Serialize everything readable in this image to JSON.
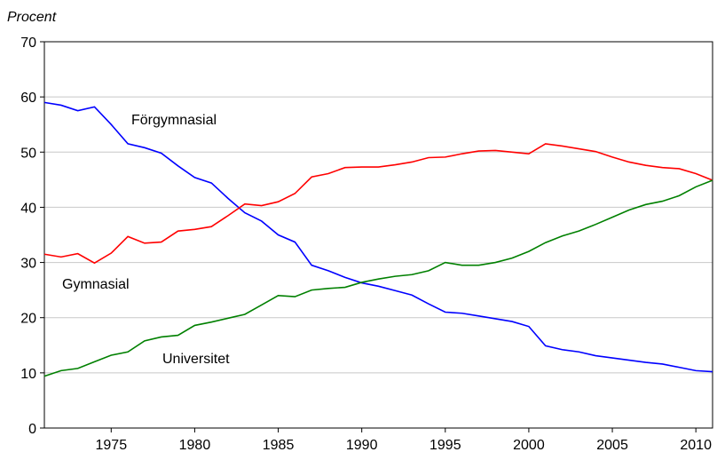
{
  "chart_data": {
    "type": "line",
    "y_label": "Procent",
    "x": [
      1971,
      1972,
      1973,
      1974,
      1975,
      1976,
      1977,
      1978,
      1979,
      1980,
      1981,
      1982,
      1983,
      1984,
      1985,
      1986,
      1987,
      1988,
      1989,
      1990,
      1991,
      1992,
      1993,
      1994,
      1995,
      1996,
      1997,
      1998,
      1999,
      2000,
      2001,
      2002,
      2003,
      2004,
      2005,
      2006,
      2007,
      2008,
      2009,
      2010,
      2011
    ],
    "xlim": [
      1971,
      2011
    ],
    "xticks": [
      1975,
      1980,
      1985,
      1990,
      1995,
      2000,
      2005,
      2010
    ],
    "ylim": [
      0,
      70
    ],
    "yticks": [
      0,
      10,
      20,
      30,
      40,
      50,
      60,
      70
    ],
    "grid": true,
    "series": [
      {
        "name": "Förgymnasial",
        "color": "#0000ff",
        "values": [
          59,
          58.5,
          57.5,
          58.2,
          55,
          51.5,
          50.8,
          49.8,
          47.5,
          45.4,
          44.4,
          41.6,
          39,
          37.5,
          35,
          33.7,
          29.5,
          28.5,
          27.3,
          26.3,
          25.7,
          24.9,
          24.1,
          22.5,
          21,
          20.8,
          20.3,
          19.8,
          19.3,
          18.4,
          14.9,
          14.2,
          13.8,
          13.1,
          12.7,
          12.3,
          11.9,
          11.6,
          11,
          10.4,
          10.2
        ]
      },
      {
        "name": "Gymnasial",
        "color": "#ff0000",
        "values": [
          31.5,
          31,
          31.6,
          29.9,
          31.7,
          34.7,
          33.5,
          33.7,
          35.7,
          36,
          36.5,
          38.5,
          40.6,
          40.3,
          41,
          42.5,
          45.5,
          46.1,
          47.2,
          47.3,
          47.3,
          47.7,
          48.2,
          49,
          49.1,
          49.7,
          50.2,
          50.3,
          50,
          49.7,
          51.5,
          51.1,
          50.6,
          50.1,
          49.1,
          48.2,
          47.6,
          47.2,
          47,
          46.1,
          44.9
        ]
      },
      {
        "name": "Universitet",
        "color": "#008000",
        "values": [
          9.4,
          10.4,
          10.8,
          12,
          13.2,
          13.8,
          15.8,
          16.5,
          16.8,
          18.6,
          19.2,
          19.9,
          20.6,
          22.3,
          24,
          23.8,
          25,
          25.3,
          25.5,
          26.4,
          27,
          27.5,
          27.8,
          28.5,
          30,
          29.5,
          29.5,
          30,
          30.8,
          32,
          33.6,
          34.8,
          35.7,
          36.9,
          38.2,
          39.5,
          40.5,
          41.1,
          42.1,
          43.7,
          44.9
        ]
      }
    ]
  }
}
